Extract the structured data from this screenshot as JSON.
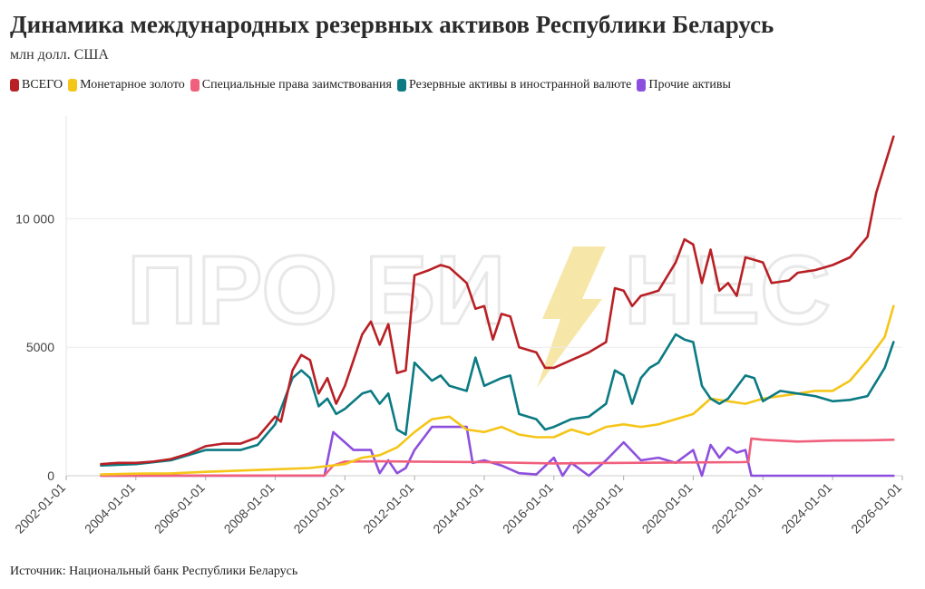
{
  "header": {
    "title": "Динамика международных резервных активов Республики Беларусь",
    "subtitle": "млн долл. США"
  },
  "watermark": {
    "left": "ПРО БИ",
    "right": "НЕС",
    "color": "#e8e8e8",
    "bolt_color": "#f5e39a"
  },
  "footer": {
    "source": "Источник: Национальный банк Республики Беларусь"
  },
  "chart_data": {
    "type": "line",
    "x_axis": {
      "type": "date",
      "range": [
        "2002-01-01",
        "2026-01-01"
      ],
      "ticks": [
        "2002-01-01",
        "2004-01-01",
        "2006-01-01",
        "2008-01-01",
        "2010-01-01",
        "2012-01-01",
        "2014-01-01",
        "2016-01-01",
        "2018-01-01",
        "2020-01-01",
        "2022-01-01",
        "2024-01-01",
        "2026-01-01"
      ]
    },
    "y_axis": {
      "range": [
        0,
        14000
      ],
      "ticks": [
        0,
        5000,
        10000
      ],
      "tick_labels": [
        "0",
        "5000",
        "10 000"
      ]
    },
    "grid": true,
    "legend_placement": "top-left",
    "series": [
      {
        "name": "ВСЕГО",
        "color": "#b82025",
        "points": [
          [
            "2003-01-01",
            450
          ],
          [
            "2003-07-01",
            500
          ],
          [
            "2004-01-01",
            500
          ],
          [
            "2004-07-01",
            550
          ],
          [
            "2005-01-01",
            650
          ],
          [
            "2005-07-01",
            850
          ],
          [
            "2006-01-01",
            1150
          ],
          [
            "2006-07-01",
            1250
          ],
          [
            "2007-01-01",
            1250
          ],
          [
            "2007-07-01",
            1500
          ],
          [
            "2008-01-01",
            2300
          ],
          [
            "2008-03-01",
            2100
          ],
          [
            "2008-07-01",
            4100
          ],
          [
            "2008-10-01",
            4700
          ],
          [
            "2009-01-01",
            4500
          ],
          [
            "2009-04-01",
            3200
          ],
          [
            "2009-07-01",
            3800
          ],
          [
            "2009-10-01",
            2800
          ],
          [
            "2010-01-01",
            3500
          ],
          [
            "2010-07-01",
            5500
          ],
          [
            "2010-10-01",
            6000
          ],
          [
            "2011-01-01",
            5100
          ],
          [
            "2011-04-01",
            5900
          ],
          [
            "2011-07-01",
            4000
          ],
          [
            "2011-10-01",
            4100
          ],
          [
            "2012-01-01",
            7800
          ],
          [
            "2012-06-01",
            8000
          ],
          [
            "2012-10-01",
            8200
          ],
          [
            "2013-01-01",
            8100
          ],
          [
            "2013-07-01",
            7500
          ],
          [
            "2013-10-01",
            6500
          ],
          [
            "2014-01-01",
            6600
          ],
          [
            "2014-04-01",
            5300
          ],
          [
            "2014-07-01",
            6300
          ],
          [
            "2014-10-01",
            6200
          ],
          [
            "2015-01-01",
            5000
          ],
          [
            "2015-07-01",
            4800
          ],
          [
            "2015-10-01",
            4200
          ],
          [
            "2016-01-01",
            4200
          ],
          [
            "2016-07-01",
            4500
          ],
          [
            "2017-01-01",
            4800
          ],
          [
            "2017-07-01",
            5200
          ],
          [
            "2017-10-01",
            7300
          ],
          [
            "2018-01-01",
            7200
          ],
          [
            "2018-04-01",
            6600
          ],
          [
            "2018-07-01",
            7000
          ],
          [
            "2018-10-01",
            7100
          ],
          [
            "2019-01-01",
            7200
          ],
          [
            "2019-07-01",
            8300
          ],
          [
            "2019-10-01",
            9200
          ],
          [
            "2020-01-01",
            9000
          ],
          [
            "2020-04-01",
            7500
          ],
          [
            "2020-07-01",
            8800
          ],
          [
            "2020-10-01",
            7200
          ],
          [
            "2021-01-01",
            7500
          ],
          [
            "2021-04-01",
            7000
          ],
          [
            "2021-07-01",
            8500
          ],
          [
            "2021-10-01",
            8400
          ],
          [
            "2022-01-01",
            8300
          ],
          [
            "2022-04-01",
            7500
          ],
          [
            "2022-10-01",
            7600
          ],
          [
            "2023-01-01",
            7900
          ],
          [
            "2023-07-01",
            8000
          ],
          [
            "2024-01-01",
            8200
          ],
          [
            "2024-07-01",
            8500
          ],
          [
            "2025-01-01",
            9300
          ],
          [
            "2025-04-01",
            11000
          ],
          [
            "2025-10-01",
            13200
          ]
        ]
      },
      {
        "name": "Монетарное золото",
        "color": "#f5c518",
        "points": [
          [
            "2003-01-01",
            50
          ],
          [
            "2004-01-01",
            80
          ],
          [
            "2005-01-01",
            90
          ],
          [
            "2006-01-01",
            150
          ],
          [
            "2007-01-01",
            200
          ],
          [
            "2008-01-01",
            250
          ],
          [
            "2009-01-01",
            300
          ],
          [
            "2010-01-01",
            450
          ],
          [
            "2010-07-01",
            700
          ],
          [
            "2011-01-01",
            800
          ],
          [
            "2011-07-01",
            1100
          ],
          [
            "2012-01-01",
            1700
          ],
          [
            "2012-07-01",
            2200
          ],
          [
            "2013-01-01",
            2300
          ],
          [
            "2013-07-01",
            1800
          ],
          [
            "2014-01-01",
            1700
          ],
          [
            "2014-07-01",
            1900
          ],
          [
            "2015-01-01",
            1600
          ],
          [
            "2015-07-01",
            1500
          ],
          [
            "2016-01-01",
            1500
          ],
          [
            "2016-07-01",
            1800
          ],
          [
            "2017-01-01",
            1600
          ],
          [
            "2017-07-01",
            1900
          ],
          [
            "2018-01-01",
            2000
          ],
          [
            "2018-07-01",
            1900
          ],
          [
            "2019-01-01",
            2000
          ],
          [
            "2019-07-01",
            2200
          ],
          [
            "2020-01-01",
            2400
          ],
          [
            "2020-07-01",
            3000
          ],
          [
            "2021-01-01",
            2900
          ],
          [
            "2021-07-01",
            2800
          ],
          [
            "2022-01-01",
            3000
          ],
          [
            "2022-07-01",
            3100
          ],
          [
            "2023-01-01",
            3200
          ],
          [
            "2023-07-01",
            3300
          ],
          [
            "2024-01-01",
            3300
          ],
          [
            "2024-07-01",
            3700
          ],
          [
            "2025-01-01",
            4500
          ],
          [
            "2025-07-01",
            5400
          ],
          [
            "2025-10-01",
            6600
          ]
        ]
      },
      {
        "name": "Специальные права заимствования",
        "color": "#f0607c",
        "points": [
          [
            "2003-01-01",
            0
          ],
          [
            "2009-06-01",
            10
          ],
          [
            "2009-09-01",
            400
          ],
          [
            "2010-01-01",
            550
          ],
          [
            "2011-01-01",
            560
          ],
          [
            "2012-01-01",
            550
          ],
          [
            "2014-01-01",
            530
          ],
          [
            "2016-01-01",
            480
          ],
          [
            "2018-01-01",
            500
          ],
          [
            "2020-01-01",
            520
          ],
          [
            "2021-06-01",
            530
          ],
          [
            "2021-08-01",
            540
          ],
          [
            "2021-09-01",
            1450
          ],
          [
            "2022-01-01",
            1400
          ],
          [
            "2023-01-01",
            1330
          ],
          [
            "2024-01-01",
            1370
          ],
          [
            "2025-01-01",
            1380
          ],
          [
            "2025-10-01",
            1400
          ]
        ]
      },
      {
        "name": "Резервные активы в иностранной валюте",
        "color": "#0b7a82",
        "points": [
          [
            "2003-01-01",
            400
          ],
          [
            "2004-01-01",
            450
          ],
          [
            "2005-01-01",
            600
          ],
          [
            "2006-01-01",
            1000
          ],
          [
            "2007-01-01",
            1000
          ],
          [
            "2007-07-01",
            1200
          ],
          [
            "2008-01-01",
            2000
          ],
          [
            "2008-07-01",
            3800
          ],
          [
            "2008-10-01",
            4100
          ],
          [
            "2009-01-01",
            3800
          ],
          [
            "2009-04-01",
            2700
          ],
          [
            "2009-07-01",
            3000
          ],
          [
            "2009-10-01",
            2400
          ],
          [
            "2010-01-01",
            2600
          ],
          [
            "2010-07-01",
            3200
          ],
          [
            "2010-10-01",
            3300
          ],
          [
            "2011-01-01",
            2800
          ],
          [
            "2011-04-01",
            3200
          ],
          [
            "2011-07-01",
            1800
          ],
          [
            "2011-10-01",
            1600
          ],
          [
            "2012-01-01",
            4400
          ],
          [
            "2012-07-01",
            3700
          ],
          [
            "2012-10-01",
            3900
          ],
          [
            "2013-01-01",
            3500
          ],
          [
            "2013-07-01",
            3300
          ],
          [
            "2013-10-01",
            4600
          ],
          [
            "2014-01-01",
            3500
          ],
          [
            "2014-07-01",
            3800
          ],
          [
            "2014-10-01",
            3900
          ],
          [
            "2015-01-01",
            2400
          ],
          [
            "2015-07-01",
            2200
          ],
          [
            "2015-10-01",
            1800
          ],
          [
            "2016-01-01",
            1900
          ],
          [
            "2016-07-01",
            2200
          ],
          [
            "2017-01-01",
            2300
          ],
          [
            "2017-07-01",
            2800
          ],
          [
            "2017-10-01",
            4100
          ],
          [
            "2018-01-01",
            3900
          ],
          [
            "2018-04-01",
            2800
          ],
          [
            "2018-07-01",
            3800
          ],
          [
            "2018-10-01",
            4200
          ],
          [
            "2019-01-01",
            4400
          ],
          [
            "2019-07-01",
            5500
          ],
          [
            "2019-10-01",
            5300
          ],
          [
            "2020-01-01",
            5200
          ],
          [
            "2020-04-01",
            3500
          ],
          [
            "2020-07-01",
            3000
          ],
          [
            "2020-10-01",
            2800
          ],
          [
            "2021-01-01",
            3000
          ],
          [
            "2021-07-01",
            3900
          ],
          [
            "2021-10-01",
            3800
          ],
          [
            "2022-01-01",
            2900
          ],
          [
            "2022-07-01",
            3300
          ],
          [
            "2023-01-01",
            3200
          ],
          [
            "2023-07-01",
            3100
          ],
          [
            "2024-01-01",
            2900
          ],
          [
            "2024-07-01",
            2950
          ],
          [
            "2025-01-01",
            3100
          ],
          [
            "2025-07-01",
            4200
          ],
          [
            "2025-10-01",
            5200
          ]
        ]
      },
      {
        "name": "Прочие активы",
        "color": "#8d4fdd",
        "points": [
          [
            "2003-01-01",
            5
          ],
          [
            "2009-06-01",
            5
          ],
          [
            "2009-09-01",
            1700
          ],
          [
            "2010-01-01",
            1300
          ],
          [
            "2010-04-01",
            1000
          ],
          [
            "2010-10-01",
            1000
          ],
          [
            "2011-01-01",
            100
          ],
          [
            "2011-04-01",
            600
          ],
          [
            "2011-07-01",
            100
          ],
          [
            "2011-10-01",
            300
          ],
          [
            "2012-01-01",
            1000
          ],
          [
            "2012-07-01",
            1900
          ],
          [
            "2013-01-01",
            1900
          ],
          [
            "2013-07-01",
            1900
          ],
          [
            "2013-09-01",
            500
          ],
          [
            "2014-01-01",
            600
          ],
          [
            "2014-07-01",
            400
          ],
          [
            "2015-01-01",
            100
          ],
          [
            "2015-07-01",
            50
          ],
          [
            "2016-01-01",
            700
          ],
          [
            "2016-04-01",
            0
          ],
          [
            "2016-07-01",
            500
          ],
          [
            "2017-01-01",
            0
          ],
          [
            "2017-07-01",
            600
          ],
          [
            "2018-01-01",
            1300
          ],
          [
            "2018-07-01",
            600
          ],
          [
            "2019-01-01",
            700
          ],
          [
            "2019-07-01",
            500
          ],
          [
            "2020-01-01",
            1000
          ],
          [
            "2020-04-01",
            0
          ],
          [
            "2020-07-01",
            1200
          ],
          [
            "2020-10-01",
            700
          ],
          [
            "2021-01-01",
            1100
          ],
          [
            "2021-04-01",
            900
          ],
          [
            "2021-07-01",
            1000
          ],
          [
            "2021-09-01",
            0
          ],
          [
            "2022-01-01",
            0
          ],
          [
            "2024-01-01",
            0
          ],
          [
            "2025-10-01",
            0
          ]
        ]
      }
    ]
  }
}
